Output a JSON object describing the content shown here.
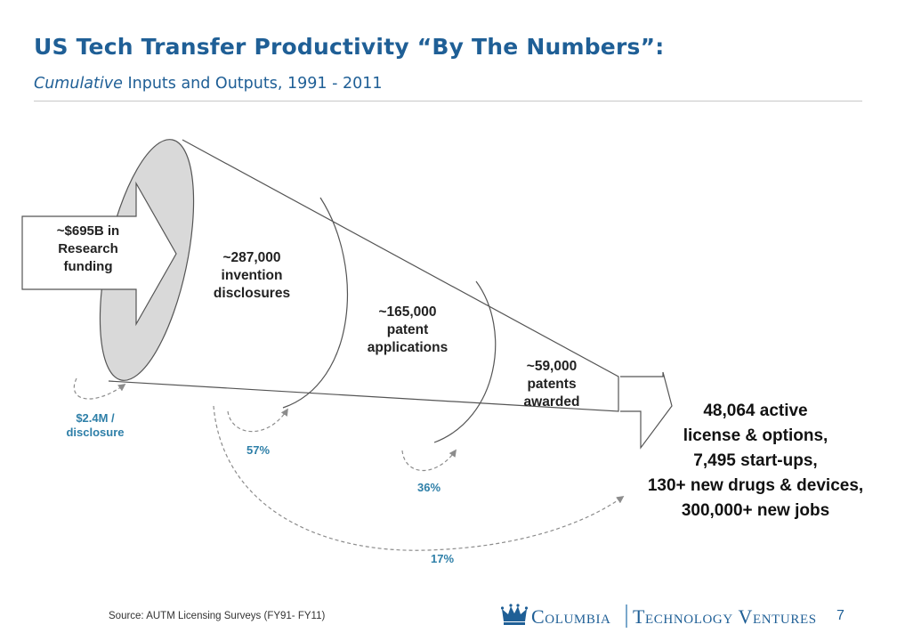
{
  "header": {
    "title": "US Tech Transfer Productivity “By The Numbers”:",
    "subtitle_em": "Cumulative",
    "subtitle_rest": " Inputs and Outputs, 1991 - 2011"
  },
  "funnel": {
    "funding": [
      "~$695B in",
      "Research",
      "funding"
    ],
    "stages": [
      {
        "lines": [
          "~287,000",
          "invention",
          "disclosures"
        ]
      },
      {
        "lines": [
          "~165,000",
          "patent",
          "applications"
        ]
      },
      {
        "lines": [
          "~59,000",
          "patents",
          "awarded"
        ]
      }
    ],
    "ratios": {
      "per_disclosure": [
        "$2.4M /",
        "disclosure"
      ],
      "disclosures_to_applications": "57%",
      "applications_to_awarded": "36%",
      "overall": "17%"
    },
    "outputs": [
      "48,064 active",
      "license & options,",
      "7,495 start-ups,",
      "130+ new drugs & devices,",
      "300,000+ new jobs"
    ]
  },
  "footer": {
    "source": "Source: AUTM Licensing Surveys (FY91- FY11)",
    "logo_left": "Columbia",
    "logo_right": "Technology Ventures",
    "page_number": "7"
  },
  "colors": {
    "title": "#1f5f96",
    "ratio_text": "#2e7fa8",
    "funnel_end": "#d9d9d9",
    "dashed_arrow": "#8c8c8c"
  },
  "icons": {
    "logo": "crown-icon"
  }
}
